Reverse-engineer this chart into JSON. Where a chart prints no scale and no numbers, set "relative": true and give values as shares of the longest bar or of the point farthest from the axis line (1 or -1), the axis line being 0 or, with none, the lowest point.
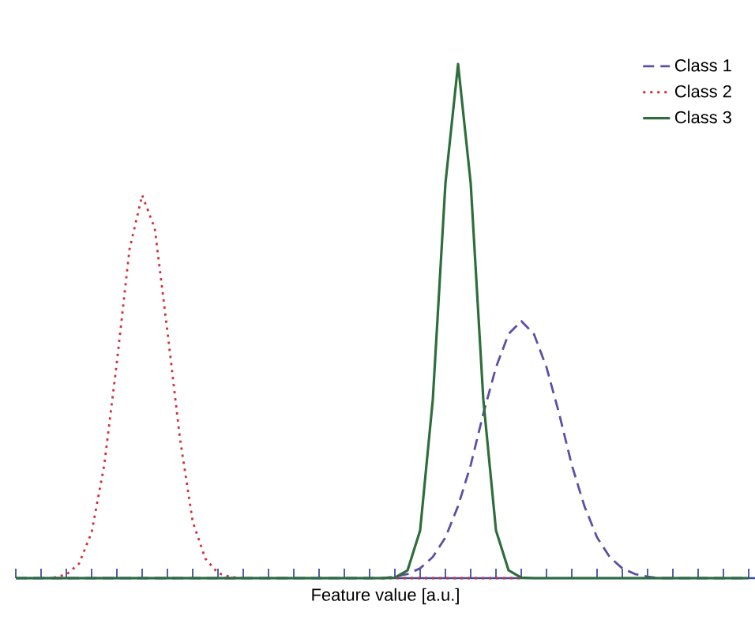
{
  "chart_data": {
    "type": "line",
    "relative": true,
    "xlabel": "Feature value [a.u.]",
    "categories": [
      null,
      null,
      null,
      null,
      null,
      null,
      null,
      null,
      null,
      null,
      null,
      null,
      null,
      null,
      null,
      null,
      null,
      null,
      null,
      null,
      null,
      null,
      null,
      null,
      null,
      null,
      null,
      null,
      null,
      null,
      null,
      null,
      null,
      null,
      null,
      null,
      null,
      null,
      null,
      null,
      null,
      null,
      null,
      null,
      null,
      null,
      null,
      null,
      null,
      null,
      null,
      null,
      null,
      null,
      null,
      null,
      null,
      null,
      null
    ],
    "legend": "top right",
    "marker": "none",
    "series": [
      {
        "name": "Class 1",
        "color": "#5b4fa6",
        "line_style": "dashed",
        "values": [
          0,
          0,
          0,
          0,
          0,
          0,
          0,
          0,
          0,
          0,
          0,
          0,
          0,
          0,
          0,
          0,
          0,
          0,
          0,
          0,
          0,
          0,
          0,
          0,
          0,
          0,
          0,
          0,
          0,
          0,
          0.003,
          0.008,
          0.019,
          0.041,
          0.079,
          0.14,
          0.22,
          0.32,
          0.41,
          0.475,
          0.5,
          0.475,
          0.41,
          0.32,
          0.22,
          0.14,
          0.079,
          0.041,
          0.019,
          0.008,
          0.003,
          0,
          0,
          0,
          0,
          0,
          0,
          0,
          0
        ]
      },
      {
        "name": "Class 2",
        "color": "#d22f3a",
        "line_style": "dotted",
        "values": [
          null,
          null,
          null,
          0.001,
          0.007,
          0.028,
          0.089,
          0.22,
          0.42,
          0.64,
          0.745,
          0.68,
          0.48,
          0.27,
          0.11,
          0.038,
          0.01,
          0.002,
          0,
          null,
          null,
          null,
          null,
          null,
          null,
          null,
          null,
          null,
          null,
          0,
          0,
          0,
          0,
          0,
          0,
          0,
          0,
          0,
          0,
          0,
          0,
          null,
          null,
          null,
          null,
          null,
          null,
          null,
          null,
          null,
          null,
          null,
          null,
          null,
          null,
          null,
          null,
          null,
          null
        ]
      },
      {
        "name": "Class 3",
        "color": "#2e6e3c",
        "line_style": "solid",
        "values": [
          0,
          0,
          0,
          0,
          0,
          0,
          0,
          0,
          0,
          0,
          0,
          0,
          0,
          0,
          0,
          0,
          0,
          0,
          0,
          0,
          0,
          0,
          0,
          0,
          0,
          0,
          0,
          0,
          0,
          0,
          0.001,
          0.015,
          0.093,
          0.347,
          0.768,
          1,
          0.768,
          0.347,
          0.093,
          0.015,
          0.001,
          0,
          0,
          0,
          0,
          0,
          0,
          0,
          0,
          0,
          0,
          0,
          0,
          0,
          0,
          0,
          0,
          0,
          0
        ]
      }
    ]
  }
}
